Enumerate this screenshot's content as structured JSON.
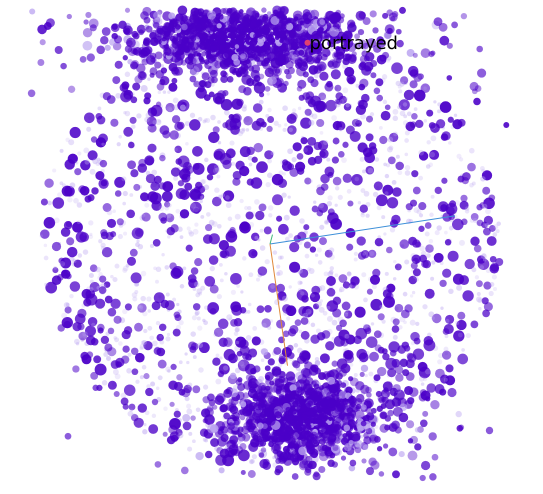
{
  "chart_data": {
    "type": "scatter",
    "title": "",
    "xlabel": "",
    "ylabel": "",
    "grid": false,
    "legend": "none",
    "xlim": [
      -1,
      1
    ],
    "ylim": [
      -1,
      1
    ],
    "highlighted_label": "portrayed",
    "highlighted_point": [
      0.15,
      0.86
    ],
    "axes": {
      "origin": [
        0.0,
        0.0
      ],
      "x_axis_end": [
        0.74,
        0.12
      ],
      "y_axis_end": [
        0.07,
        -0.52
      ],
      "z_axis_end": [
        0.01,
        0.04
      ]
    },
    "clusters": [
      {
        "name": "upper",
        "center": [
          -0.1,
          0.88
        ],
        "spread": [
          0.2,
          0.07
        ],
        "count": 1400
      },
      {
        "name": "lower",
        "center": [
          0.14,
          -0.75
        ],
        "spread": [
          0.14,
          0.08
        ],
        "count": 1200
      }
    ],
    "background_points": 1700
  },
  "colors": {
    "point": "#4b00c8",
    "point_light": "#b9a2f0",
    "x_axis": "#3d8fd8",
    "y_axis": "#e0883a",
    "z_axis": "#3fb87a",
    "label_text": "#000000"
  }
}
